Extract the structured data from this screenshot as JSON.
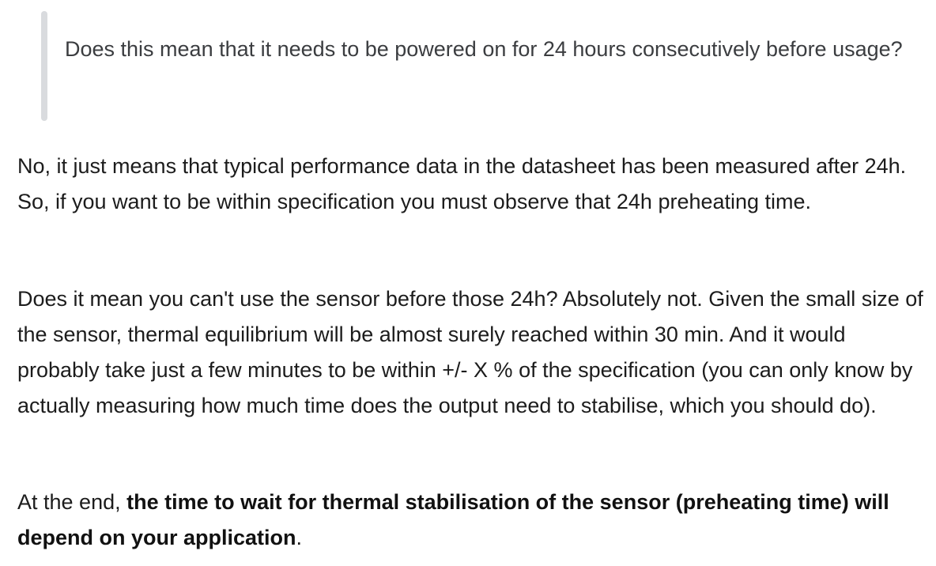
{
  "quote": {
    "text": "Does this mean that it needs to be powered on for 24 hours consecutively before usage?"
  },
  "answer": {
    "paragraph1": "No, it just means that typical performance data in the datasheet has been measured after 24h. So, if you want to be within specification you must observe that 24h preheating time.",
    "paragraph2": "Does it mean you can't use the sensor before those 24h? Absolutely not. Given the small size of the sensor, thermal equilibrium will be almost surely reached within 30 min. And it would probably take just a few minutes to be within +/- X % of the specification (you can only know by actually measuring how much time does the output need to stabilise, which you should do).",
    "paragraph3_prefix": "At the end, ",
    "paragraph3_bold": "the time to wait for thermal stabilisation of the sensor (preheating time) will depend on your application",
    "paragraph3_suffix": "."
  },
  "colors": {
    "quote_bar": "#d9dbde",
    "quote_text": "#3b3d40",
    "body_text": "#1c1c1c",
    "background": "#ffffff"
  }
}
